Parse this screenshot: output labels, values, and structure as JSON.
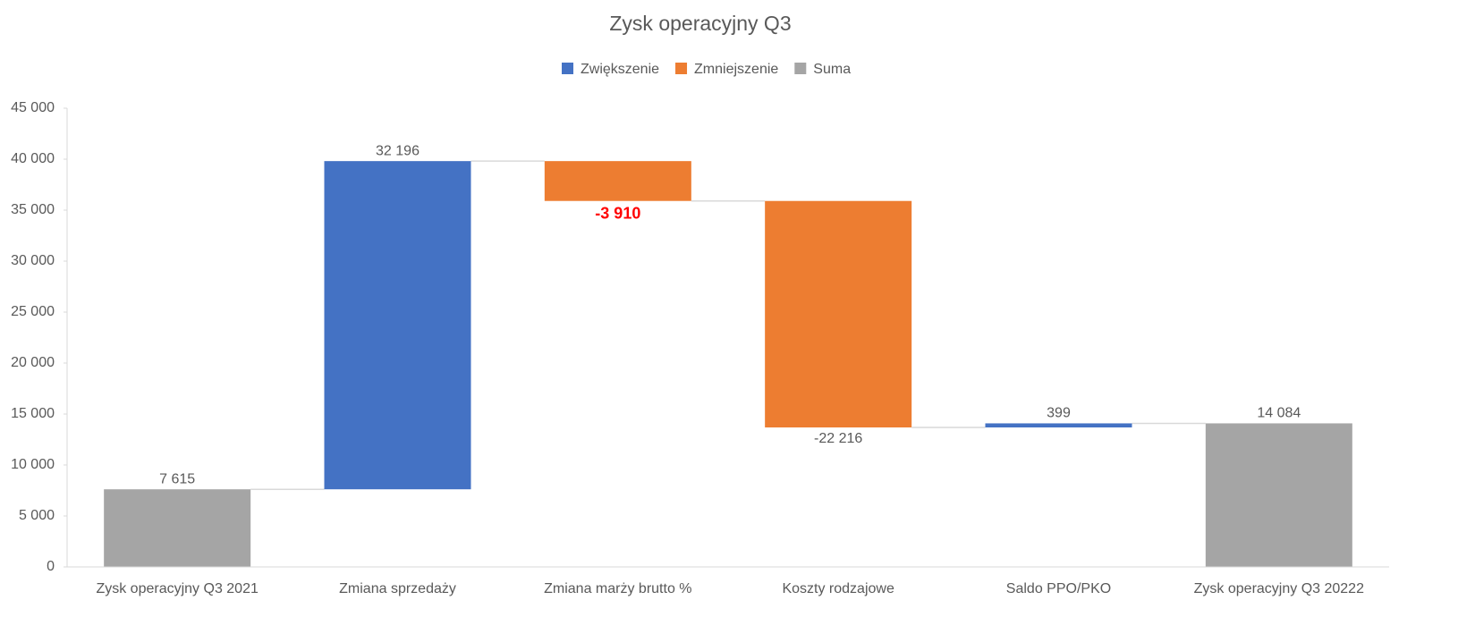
{
  "chart_data": {
    "type": "waterfall",
    "title": "Zysk operacyjny Q3",
    "categories": [
      "Zysk operacyjny Q3 2021",
      "Zmiana sprzedaży",
      "Zmiana marży brutto %",
      "Koszty rodzajowe",
      "Saldo PPO/PKO",
      "Zysk operacyjny Q3 20222"
    ],
    "values": [
      7615,
      32196,
      -3910,
      -22216,
      399,
      14084
    ],
    "value_labels": [
      "7 615",
      "32 196",
      "-3 910",
      "-22 216",
      "399",
      "14 084"
    ],
    "value_label_colors": [
      null,
      null,
      "#ff0000",
      null,
      null,
      null
    ],
    "totals": [
      true,
      false,
      false,
      false,
      false,
      true
    ],
    "series": [
      {
        "name": "Zwiększenie",
        "color": "#4472c4"
      },
      {
        "name": "Zmniejszenie",
        "color": "#ed7d31"
      },
      {
        "name": "Suma",
        "color": "#a5a5a5"
      }
    ],
    "ylim": [
      0,
      45000
    ],
    "yticks": [
      0,
      {
        "value": 5000,
        "label": "5 000"
      },
      {
        "value": 10000,
        "label": "10 000"
      },
      {
        "value": 15000,
        "label": "15 000"
      },
      {
        "value": 20000,
        "label": "20 000"
      },
      {
        "value": 25000,
        "label": "25 000"
      },
      {
        "value": 30000,
        "label": "30 000"
      },
      {
        "value": 35000,
        "label": "35 000"
      },
      {
        "value": 40000,
        "label": "40 000"
      },
      {
        "value": 45000,
        "label": "45 000"
      }
    ],
    "grid": false
  }
}
